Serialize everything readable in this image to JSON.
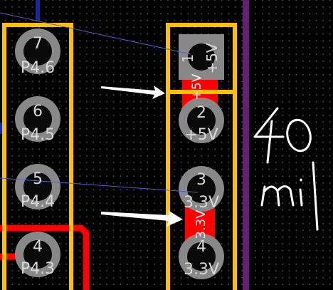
{
  "left_header": {
    "pins": [
      {
        "number": "7",
        "net": "P4.6"
      },
      {
        "number": "6",
        "net": "P4.5"
      },
      {
        "number": "5",
        "net": "P4.4"
      },
      {
        "number": "4",
        "net": "P4.3"
      }
    ]
  },
  "right_header": {
    "pins": [
      {
        "number": "1",
        "net": "+5V"
      },
      {
        "number": "2",
        "net": "+5V"
      },
      {
        "number": "3",
        "net": "3.3V"
      },
      {
        "number": "4",
        "net": "3.3V"
      }
    ],
    "trace_labels": {
      "top": "+5V",
      "bottom": "3.3V"
    }
  },
  "annotation": {
    "line1": "40",
    "line2": "mil"
  },
  "colors": {
    "board": "#000000",
    "silkscreen": "#ffc000",
    "copper": "#ff0000",
    "ratsnest": "#4f5fd8",
    "board_edge": "#6a1b7a",
    "pad": "#888888",
    "hole": "#0a0a0a",
    "arrow": "#ffffff"
  }
}
